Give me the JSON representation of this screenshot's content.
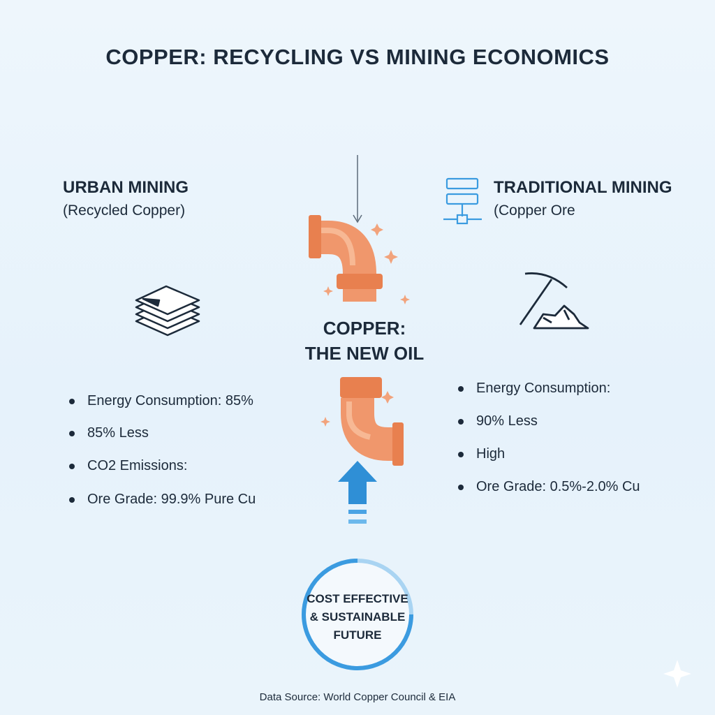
{
  "header": {
    "title": "COPPER: RECYCLING VS MINING ECONOMICS"
  },
  "left": {
    "heading": "URBAN MINING",
    "subheading": "(Recycled Copper)",
    "bullets": [
      "Energy Consumption: 85%",
      "85% Less",
      "CO2 Emissions:",
      "Ore Grade: 99.9% Pure Cu"
    ]
  },
  "right": {
    "heading": "TRADITIONAL MINING",
    "subheading": "(Copper Ore",
    "bullets": [
      "Energy Consumption:",
      "90% Less",
      "High",
      "Ore Grade: 0.5%-2.0% Cu"
    ]
  },
  "center": {
    "lines": [
      "COPPER:",
      "THE NEW OIL"
    ]
  },
  "badge": {
    "lines": [
      "COST EFFECTIVE",
      "& SUSTAINABLE",
      "FUTURE"
    ]
  },
  "footer": {
    "source": "Data Source: World Copper Council & EIA"
  }
}
